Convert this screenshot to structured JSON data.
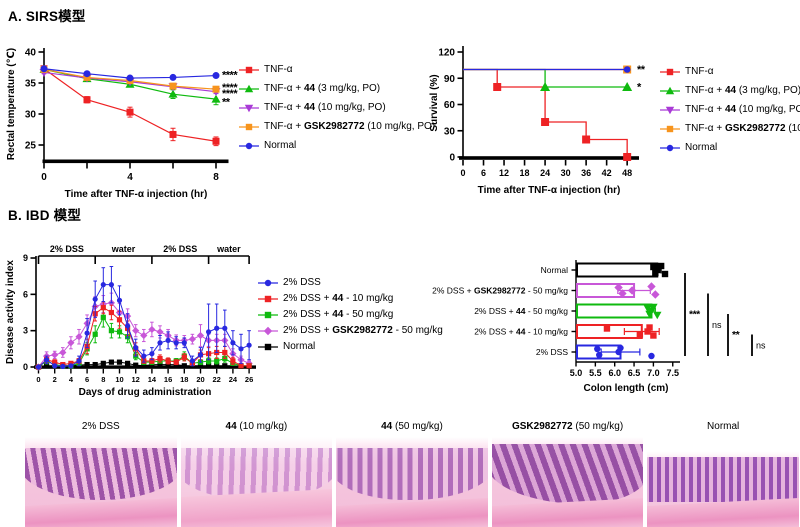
{
  "panel_a": {
    "title": "A. SIRS模型"
  },
  "panel_b": {
    "title": "B. IBD 模型"
  },
  "colors": {
    "red": "#ee2224",
    "green": "#0fba0f",
    "purple": "#a93ad6",
    "orange": "#f7941d",
    "blue": "#2828e0",
    "magenta": "#c857d8",
    "black": "#000000"
  },
  "chart_data": [
    {
      "id": "rectal-temperature",
      "type": "line",
      "xlabel": "Time after TNF-α injection (hr)",
      "ylabel": "Rectal temperature (℃)",
      "xlim": [
        0,
        8.6
      ],
      "ylim": [
        22,
        41
      ],
      "xticks": [
        0,
        2,
        4,
        6,
        8
      ],
      "xtick_labels": [
        "0",
        "",
        "4",
        "",
        "8"
      ],
      "yticks": [
        25,
        30,
        35,
        40
      ],
      "x": [
        0,
        2,
        4,
        6,
        8
      ],
      "series": [
        {
          "name_parts": [
            [
              "TNF-α",
              0
            ]
          ],
          "color": "#ee2224",
          "marker": "square",
          "values": [
            37.3,
            32.3,
            30.3,
            26.7,
            25.6
          ],
          "err": [
            0.3,
            0.5,
            0.8,
            1.0,
            0.7
          ]
        },
        {
          "name_parts": [
            [
              "TNF-α + ",
              0
            ],
            [
              "44",
              1
            ],
            [
              " (3 mg/kg, PO)",
              0
            ]
          ],
          "color": "#0fba0f",
          "marker": "triangle-up",
          "values": [
            37.2,
            35.7,
            34.8,
            33.2,
            32.4
          ],
          "err": [
            0.2,
            0.3,
            0.4,
            0.7,
            0.9
          ]
        },
        {
          "name_parts": [
            [
              "TNF-α + ",
              0
            ],
            [
              "44",
              1
            ],
            [
              " (10 mg/kg, PO)",
              0
            ]
          ],
          "color": "#a93ad6",
          "marker": "triangle-down",
          "values": [
            36.7,
            35.8,
            35.2,
            34.4,
            33.6
          ],
          "err": [
            0.2,
            0.2,
            0.3,
            0.3,
            0.3
          ]
        },
        {
          "name_parts": [
            [
              "TNF-α + ",
              0
            ],
            [
              "GSK2982772",
              1
            ],
            [
              " (10 mg/kg, PO)",
              0
            ]
          ],
          "color": "#f7941d",
          "marker": "square",
          "values": [
            37.2,
            35.9,
            35.4,
            34.5,
            34.0
          ],
          "err": [
            0.2,
            0.2,
            0.3,
            0.4,
            0.3
          ]
        },
        {
          "name_parts": [
            [
              "Normal",
              0
            ]
          ],
          "color": "#2828e0",
          "marker": "circle",
          "values": [
            37.3,
            36.5,
            35.8,
            35.9,
            36.2
          ],
          "err": [
            0.2,
            0.2,
            0.3,
            0.2,
            0.3
          ]
        }
      ],
      "annotations": [
        {
          "text": "****",
          "y": 36.3
        },
        {
          "text": "****",
          "y": 34.3
        },
        {
          "text": "****",
          "y": 33.3
        },
        {
          "text": "**",
          "y": 31.9
        }
      ]
    },
    {
      "id": "survival",
      "type": "line",
      "xlabel": "Time after TNF-α injection (hr)",
      "ylabel": "Survival (%)",
      "xlim": [
        0,
        50
      ],
      "ylim": [
        0,
        120
      ],
      "xticks": [
        0,
        6,
        12,
        18,
        24,
        30,
        36,
        42,
        48
      ],
      "yticks": [
        0,
        30,
        60,
        90,
        120
      ],
      "series": [
        {
          "name_parts": [
            [
              "TNF-α",
              0
            ]
          ],
          "color": "#ee2224",
          "marker": "square",
          "points": [
            [
              0,
              100
            ],
            [
              10,
              100
            ],
            [
              10,
              80
            ],
            [
              24,
              80
            ],
            [
              24,
              40
            ],
            [
              36,
              40
            ],
            [
              36,
              20
            ],
            [
              48,
              20
            ],
            [
              48,
              0
            ]
          ],
          "marker_points": [
            [
              10,
              80
            ],
            [
              24,
              40
            ],
            [
              36,
              20
            ],
            [
              48,
              0
            ]
          ]
        },
        {
          "name_parts": [
            [
              "TNF-α + ",
              0
            ],
            [
              "44",
              1
            ],
            [
              " (3 mg/kg, PO)",
              0
            ]
          ],
          "color": "#0fba0f",
          "marker": "triangle-up",
          "points": [
            [
              0,
              100
            ],
            [
              24,
              100
            ],
            [
              24,
              80
            ],
            [
              48,
              80
            ]
          ],
          "marker_points": [
            [
              24,
              80
            ],
            [
              48,
              80
            ]
          ]
        },
        {
          "name_parts": [
            [
              "TNF-α + ",
              0
            ],
            [
              "44",
              1
            ],
            [
              " (10 mg/kg, PO)",
              0
            ]
          ],
          "color": "#a93ad6",
          "marker": "triangle-down",
          "points": [
            [
              0,
              100
            ],
            [
              48,
              100
            ]
          ],
          "marker_points": []
        },
        {
          "name_parts": [
            [
              "TNF-α + ",
              0
            ],
            [
              "GSK2982772",
              1
            ],
            [
              " (10 mg/kg, PO)",
              0
            ]
          ],
          "color": "#f7941d",
          "marker": "square",
          "points": [
            [
              0,
              100
            ],
            [
              48,
              100
            ]
          ],
          "marker_points": [
            [
              48,
              100
            ]
          ]
        },
        {
          "name_parts": [
            [
              "Normal",
              0
            ]
          ],
          "color": "#2828e0",
          "marker": "circle",
          "points": [
            [
              0,
              100
            ],
            [
              48,
              100
            ]
          ],
          "marker_points": [
            [
              48,
              100
            ]
          ]
        }
      ],
      "annotations": [
        {
          "text": "**",
          "y": 100
        },
        {
          "text": "*",
          "y": 80
        }
      ]
    },
    {
      "id": "disease-activity-index",
      "type": "line",
      "xlabel": "Days of drug administration",
      "ylabel": "Disease activity index",
      "xlim": [
        0,
        26
      ],
      "ylim": [
        0,
        9.2
      ],
      "xticks": [
        0,
        2,
        4,
        6,
        8,
        10,
        12,
        14,
        16,
        18,
        20,
        22,
        24,
        26
      ],
      "yticks": [
        0,
        3,
        6,
        9
      ],
      "phases": [
        {
          "label": "2% DSS",
          "from": 0,
          "to": 7
        },
        {
          "label": "water",
          "from": 7,
          "to": 14
        },
        {
          "label": "2% DSS",
          "from": 14,
          "to": 21
        },
        {
          "label": "water",
          "from": 21,
          "to": 26
        }
      ],
      "x": [
        0,
        1,
        2,
        3,
        4,
        5,
        6,
        7,
        8,
        9,
        10,
        11,
        12,
        13,
        14,
        15,
        16,
        17,
        18,
        19,
        20,
        21,
        22,
        23,
        24,
        25,
        26
      ],
      "series": [
        {
          "name_parts": [
            [
              "2% DSS",
              0
            ]
          ],
          "color": "#2828e0",
          "marker": "circle",
          "values": [
            0,
            0.6,
            0.1,
            0.05,
            0.1,
            0.5,
            2.8,
            5.6,
            6.8,
            6.8,
            5.5,
            3.4,
            1.6,
            0.9,
            1.1,
            2.0,
            2.2,
            2.0,
            2.0,
            0.5,
            1.0,
            2.9,
            3.2,
            3.2,
            2.0,
            1.5,
            1.8
          ],
          "err": [
            0,
            0.3,
            0.1,
            0.05,
            0.1,
            0.4,
            1.2,
            1.5,
            1.4,
            1.5,
            1.2,
            1.0,
            0.7,
            0.5,
            0.5,
            0.6,
            0.7,
            0.5,
            0.4,
            0.4,
            0.6,
            2.3,
            2.0,
            1.5,
            1.0,
            1.2,
            1.2
          ]
        },
        {
          "name_parts": [
            [
              "2% DSS + ",
              0
            ],
            [
              "44",
              1
            ],
            [
              " - 10 mg/kg",
              0
            ]
          ],
          "color": "#ee2224",
          "marker": "square",
          "values": [
            0,
            0.6,
            0.4,
            0.2,
            0.3,
            0.5,
            1.7,
            4.4,
            4.9,
            4.5,
            3.9,
            3.2,
            1.5,
            0.5,
            0.5,
            0.7,
            0.5,
            0.4,
            0.8,
            0.3,
            1.0,
            1.1,
            1.2,
            1.2,
            0.5,
            0.1,
            0.1
          ],
          "err": [
            0,
            0.3,
            0.2,
            0.1,
            0.15,
            0.2,
            0.6,
            0.6,
            0.5,
            0.6,
            0.7,
            0.6,
            0.5,
            0.2,
            0.2,
            0.3,
            0.25,
            0.2,
            0.3,
            0.15,
            0.4,
            0.5,
            0.5,
            0.5,
            0.3,
            0.1,
            0.1
          ]
        },
        {
          "name_parts": [
            [
              "2% DSS + ",
              0
            ],
            [
              "44",
              1
            ],
            [
              " - 50 mg/kg",
              0
            ]
          ],
          "color": "#0fba0f",
          "marker": "square",
          "values": [
            0,
            0.5,
            0.2,
            0.1,
            0.1,
            0.3,
            1.5,
            2.7,
            4.1,
            3.0,
            2.9,
            2.5,
            0.9,
            0.4,
            0.4,
            0.5,
            0.5,
            0.5,
            0.9,
            0.3,
            0.4,
            0.5,
            0.5,
            0.7,
            0.3,
            0.1,
            0.1
          ],
          "err": [
            0,
            0.25,
            0.1,
            0.05,
            0.1,
            0.15,
            0.5,
            0.7,
            0.8,
            0.6,
            0.5,
            0.5,
            0.3,
            0.2,
            0.2,
            0.2,
            0.2,
            0.2,
            0.35,
            0.15,
            0.2,
            0.25,
            0.25,
            0.3,
            0.15,
            0.1,
            0.1
          ]
        },
        {
          "name_parts": [
            [
              "2% DSS + ",
              0
            ],
            [
              "GSK2982772",
              1
            ],
            [
              " - 50 mg/kg",
              0
            ]
          ],
          "color": "#c857d8",
          "marker": "diamond",
          "values": [
            0,
            0.9,
            1.0,
            1.2,
            2.0,
            2.5,
            3.6,
            5.0,
            5.2,
            5.3,
            4.5,
            4.2,
            3.0,
            2.6,
            3.1,
            2.9,
            2.6,
            2.2,
            2.2,
            2.3,
            2.6,
            2.2,
            2.2,
            2.2,
            1.1,
            0.6,
            0.3
          ],
          "err": [
            0,
            0.35,
            0.3,
            0.4,
            0.5,
            0.6,
            0.7,
            0.8,
            0.7,
            0.8,
            0.75,
            0.6,
            0.5,
            0.5,
            0.6,
            0.5,
            0.5,
            0.45,
            0.4,
            0.4,
            0.9,
            0.5,
            0.5,
            0.5,
            0.4,
            0.3,
            0.2
          ]
        },
        {
          "name_parts": [
            [
              "Normal",
              0
            ]
          ],
          "color": "#000000",
          "marker": "square",
          "values": [
            0,
            0.1,
            0.1,
            0.1,
            0.1,
            0.15,
            0.2,
            0.2,
            0.3,
            0.4,
            0.4,
            0.3,
            0.15,
            0.1,
            0.2,
            0.2,
            0.2,
            0.2,
            0.1,
            0.1,
            0.1,
            0.1,
            0.1,
            0.1,
            0.1,
            0.05,
            0.05
          ],
          "err": [
            0,
            0.05,
            0.05,
            0.05,
            0.05,
            0.05,
            0.1,
            0.1,
            0.1,
            0.15,
            0.15,
            0.1,
            0.05,
            0.05,
            0.1,
            0.1,
            0.1,
            0.1,
            0.05,
            0.05,
            0.05,
            0.05,
            0.05,
            0.05,
            0.05,
            0.05,
            0.05
          ]
        }
      ]
    },
    {
      "id": "colon-length",
      "type": "barh",
      "xlabel": "Colon length (cm)",
      "xlim": [
        5.0,
        7.6
      ],
      "xticks": [
        5.0,
        5.5,
        6.0,
        6.5,
        7.0,
        7.5
      ],
      "xtick_labels": [
        "5.0",
        "5.5",
        "6.0",
        "6.5",
        "7.0",
        "7.5"
      ],
      "categories": [
        {
          "label_parts": [
            [
              "Normal",
              0
            ]
          ],
          "color": "#000000",
          "marker": "square",
          "mean": 7.1,
          "err": 0.1,
          "points": [
            7.0,
            7.05,
            7.1,
            7.2,
            7.3
          ]
        },
        {
          "label_parts": [
            [
              "2% DSS + ",
              0
            ],
            [
              "GSK2982772",
              1
            ],
            [
              " - 50 mg/kg",
              0
            ]
          ],
          "color": "#c857d8",
          "marker": "diamond",
          "mean": 6.5,
          "err": 0.42,
          "points": [
            6.1,
            6.2,
            6.45,
            6.95,
            7.05
          ]
        },
        {
          "label_parts": [
            [
              "2% DSS + ",
              0
            ],
            [
              "44",
              1
            ],
            [
              " - 50 mg/kg",
              0
            ]
          ],
          "color": "#0fba0f",
          "marker": "triangle-down",
          "mean": 6.95,
          "err": 0.1,
          "points": [
            6.85,
            6.9,
            6.95,
            7.0,
            7.1
          ]
        },
        {
          "label_parts": [
            [
              "2% DSS + ",
              0
            ],
            [
              "44",
              1
            ],
            [
              " - 10 mg/kg",
              0
            ]
          ],
          "color": "#ee2224",
          "marker": "square",
          "mean": 6.7,
          "err": 0.45,
          "points": [
            5.8,
            6.65,
            6.85,
            6.9,
            7.0
          ]
        },
        {
          "label_parts": [
            [
              "2% DSS",
              0
            ]
          ],
          "color": "#2828e0",
          "marker": "circle",
          "mean": 6.15,
          "err": 0.5,
          "points": [
            5.55,
            5.6,
            6.1,
            6.15,
            6.95
          ]
        }
      ],
      "significance": [
        {
          "label": "***",
          "from": 0,
          "to": 4
        },
        {
          "label": "ns",
          "from": 1,
          "to": 4
        },
        {
          "label": "**",
          "from": 2,
          "to": 4
        },
        {
          "label": "ns",
          "from": 3,
          "to": 4
        }
      ]
    }
  ],
  "histology": {
    "panels": [
      {
        "label_parts": [
          [
            "2% DSS",
            0
          ]
        ]
      },
      {
        "label_parts": [
          [
            "44",
            1
          ],
          [
            " (10 mg/kg)",
            0
          ]
        ]
      },
      {
        "label_parts": [
          [
            "44",
            1
          ],
          [
            " (50 mg/kg)",
            0
          ]
        ]
      },
      {
        "label_parts": [
          [
            "GSK2982772",
            1
          ],
          [
            " (50 mg/kg)",
            0
          ]
        ]
      },
      {
        "label_parts": [
          [
            "Normal",
            0
          ]
        ]
      }
    ]
  }
}
